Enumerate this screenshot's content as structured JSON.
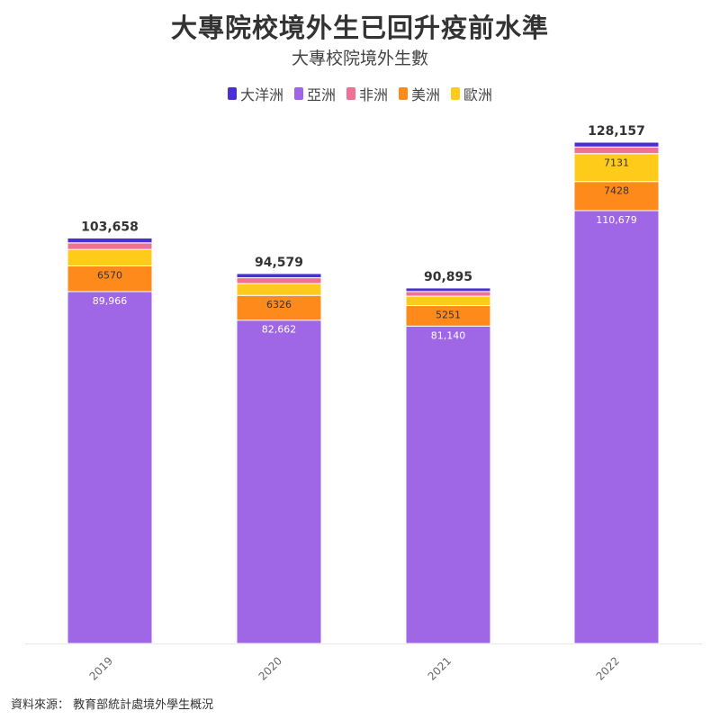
{
  "chart_data": {
    "type": "bar",
    "stacked": true,
    "title": "大專院校境外生已回升疫前水準",
    "subtitle": "大專校院境外生數",
    "categories": [
      "2019",
      "2020",
      "2021",
      "2022"
    ],
    "series": [
      {
        "name": "亞洲",
        "color": "#9f67e6",
        "values": [
          89966,
          82662,
          81140,
          110679
        ],
        "labels": [
          "89,966",
          "82,662",
          "81,140",
          "110,679"
        ]
      },
      {
        "name": "美洲",
        "color": "#ff8a1c",
        "values": [
          6570,
          6326,
          5251,
          7428
        ],
        "labels": [
          "6570",
          "6326",
          "5251",
          "7428"
        ]
      },
      {
        "name": "歐洲",
        "color": "#ffcb1a",
        "values": [
          4200,
          3020,
          2400,
          7131
        ],
        "labels": [
          "",
          "",
          "",
          "7131"
        ]
      },
      {
        "name": "非洲",
        "color": "#ef7295",
        "values": [
          1700,
          1500,
          1200,
          1700
        ],
        "labels": [
          "",
          "",
          "",
          ""
        ]
      },
      {
        "name": "大洋洲",
        "color": "#4a2fd6",
        "values": [
          1222,
          1071,
          904,
          1219
        ],
        "labels": [
          "",
          "",
          "",
          ""
        ]
      }
    ],
    "totals": [
      "103,658",
      "94,579",
      "90,895",
      "128,157"
    ],
    "legend_order": [
      "大洋洲",
      "亞洲",
      "非洲",
      "美洲",
      "歐洲"
    ],
    "legend_position": "top",
    "ylim": [
      0,
      128157
    ],
    "grid": false
  },
  "source": "資料來源： 教育部統計處境外學生概況"
}
